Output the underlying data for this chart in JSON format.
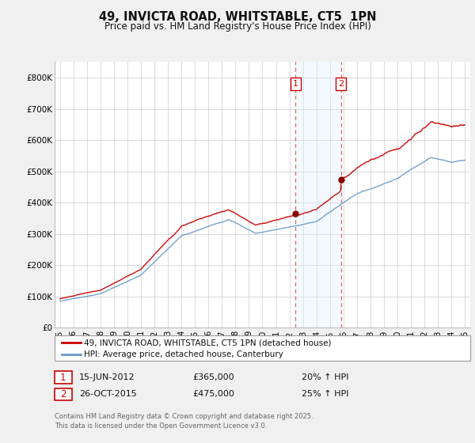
{
  "title": "49, INVICTA ROAD, WHITSTABLE, CT5  1PN",
  "subtitle": "Price paid vs. HM Land Registry's House Price Index (HPI)",
  "legend_line1": "49, INVICTA ROAD, WHITSTABLE, CT5 1PN (detached house)",
  "legend_line2": "HPI: Average price, detached house, Canterbury",
  "purchase1_date": "15-JUN-2012",
  "purchase1_price": "£365,000",
  "purchase1_hpi": "20% ↑ HPI",
  "purchase2_date": "26-OCT-2015",
  "purchase2_price": "£475,000",
  "purchase2_hpi": "25% ↑ HPI",
  "footnote": "Contains HM Land Registry data © Crown copyright and database right 2025.\nThis data is licensed under the Open Government Licence v3.0.",
  "red_line_color": "#cc0000",
  "blue_line_color": "#6699cc",
  "bg_color": "#f0f0f0",
  "plot_bg_color": "#ffffff",
  "grid_color": "#cccccc",
  "shade_color": "#ddeeff",
  "purchase1_x": 2012.45,
  "purchase2_x": 2015.82,
  "ylim_min": 0,
  "ylim_max": 850000,
  "xlim_min": 1994.6,
  "xlim_max": 2025.4
}
